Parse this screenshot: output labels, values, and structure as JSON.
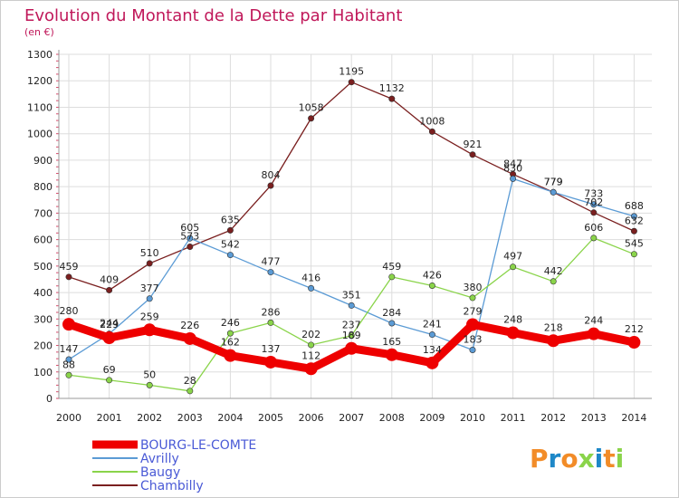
{
  "chart_data": {
    "type": "line",
    "title": "Evolution du Montant de la Dette par Habitant",
    "subtitle": "(en €)",
    "ylim": [
      0,
      1300
    ],
    "y_ticks": [
      0,
      100,
      200,
      300,
      400,
      500,
      600,
      700,
      800,
      900,
      1000,
      1100,
      1200,
      1300
    ],
    "categories": [
      "2000",
      "2001",
      "2002",
      "2003",
      "2004",
      "2005",
      "2006",
      "2007",
      "2008",
      "2009",
      "2010",
      "2011",
      "2012",
      "2013",
      "2014"
    ],
    "grid": true,
    "legend_position": "bottom-left",
    "series": [
      {
        "name": "Chambilly",
        "color": "#7a1f1f",
        "values": [
          459,
          409,
          510,
          573,
          635,
          804,
          1058,
          1195,
          1132,
          1008,
          921,
          847,
          779,
          702,
          632
        ]
      },
      {
        "name": "Avrilly",
        "color": "#5b9bd5",
        "values": [
          147,
          244,
          377,
          605,
          542,
          477,
          416,
          351,
          284,
          241,
          183,
          830,
          779,
          733,
          688
        ]
      },
      {
        "name": "Baugy",
        "color": "#8ad44a",
        "values": [
          88,
          69,
          50,
          28,
          246,
          286,
          202,
          237,
          459,
          426,
          380,
          497,
          442,
          606,
          545
        ]
      },
      {
        "name": "BOURG-LE-COMTE",
        "color": "#ee0000",
        "values": [
          280,
          229,
          259,
          226,
          162,
          137,
          112,
          189,
          165,
          134,
          279,
          248,
          218,
          244,
          212
        ]
      }
    ],
    "data_labels": [
      {
        "series": "Chambilly",
        "labels": [
          "459",
          "409",
          "510",
          "573",
          "635",
          "804",
          "1058",
          "1195",
          "1132",
          "1008",
          "921",
          "847",
          "779",
          "702",
          "632"
        ]
      },
      {
        "series": "Avrilly",
        "labels": [
          "147",
          "244",
          "377",
          "605",
          "542",
          "477",
          "416",
          "351",
          "284",
          "241",
          "183",
          "830",
          "779",
          "733",
          "688"
        ]
      },
      {
        "series": "Baugy",
        "labels": [
          "88",
          "69",
          "50",
          "28",
          "246",
          "286",
          "202",
          "237",
          "459",
          "426",
          "380",
          "497",
          "442",
          "606",
          "545"
        ]
      },
      {
        "series": "BOURG-LE-COMTE",
        "labels": [
          "280",
          "229",
          "259",
          "226",
          "162",
          "137",
          "112",
          "189",
          "165",
          "134",
          "279",
          "248",
          "218",
          "244",
          "212"
        ]
      }
    ],
    "legend": [
      "BOURG-LE-COMTE",
      "Avrilly",
      "Baugy",
      "Chambilly"
    ]
  },
  "logo": {
    "text": "Proxiti",
    "letter_colors": [
      "#f28c28",
      "#1e88c8",
      "#f28c28",
      "#8ad44a",
      "#1e88c8",
      "#f28c28",
      "#8ad44a"
    ]
  }
}
